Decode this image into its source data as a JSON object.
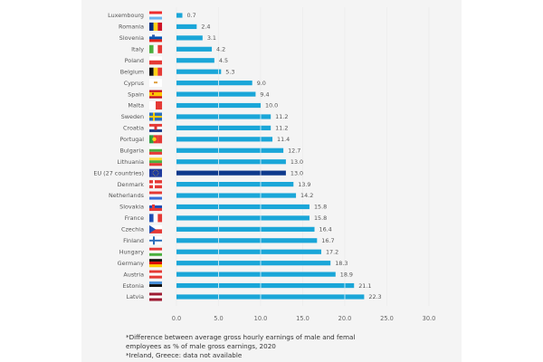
{
  "chart_data": {
    "type": "bar",
    "orientation": "horizontal",
    "title": "",
    "xlabel": "",
    "ylabel": "",
    "xlim": [
      0,
      30
    ],
    "xticks": [
      "0.0",
      "5.0",
      "10.0",
      "15.0",
      "20.0",
      "25.0",
      "30.0"
    ],
    "grid": true,
    "colors": {
      "bar": "#1aa6d8",
      "highlight": "#0e3a8c"
    },
    "categories": [
      "Luxembourg",
      "Romania",
      "Slovenia",
      "Italy",
      "Poland",
      "Belgium",
      "Cyprus",
      "Spain",
      "Malta",
      "Sweden",
      "Croatia",
      "Portugal",
      "Bulgaria",
      "Lithuania",
      "EU (27 countries)",
      "Denmark",
      "Netherlands",
      "Slovakia",
      "France",
      "Czechia",
      "Finland",
      "Hungary",
      "Germany",
      "Austria",
      "Estonia",
      "Latvia"
    ],
    "values": [
      0.7,
      2.4,
      3.1,
      4.2,
      4.5,
      5.3,
      9.0,
      9.4,
      10.0,
      11.2,
      11.2,
      11.4,
      12.7,
      13.0,
      13.0,
      13.9,
      14.2,
      15.8,
      15.8,
      16.4,
      16.7,
      17.2,
      18.3,
      18.9,
      21.1,
      22.3
    ],
    "value_labels": [
      "0.7",
      "2.4",
      "3.1",
      "4.2",
      "4.5",
      "5.3",
      "9.0",
      "9.4",
      "10.0",
      "11.2",
      "11.2",
      "11.4",
      "12.7",
      "13.0",
      "13.0",
      "13.9",
      "14.2",
      "15.8",
      "15.8",
      "16.4",
      "16.7",
      "17.2",
      "18.3",
      "18.9",
      "21.1",
      "22.3"
    ],
    "highlight": "EU (27 countries)",
    "flags": [
      "luxembourg-flag",
      "romania-flag",
      "slovenia-flag",
      "italy-flag",
      "poland-flag",
      "belgium-flag",
      "cyprus-flag",
      "spain-flag",
      "malta-flag",
      "sweden-flag",
      "croatia-flag",
      "portugal-flag",
      "bulgaria-flag",
      "lithuania-flag",
      "eu-flag",
      "denmark-flag",
      "netherlands-flag",
      "slovakia-flag",
      "france-flag",
      "czechia-flag",
      "finland-flag",
      "hungary-flag",
      "germany-flag",
      "austria-flag",
      "estonia-flag",
      "latvia-flag"
    ]
  },
  "footnotes": [
    "*Difference between average gross hourly earnings of male and femal",
    "employees as % of male gross earnings, 2020",
    "*Ireland, Greece: data not available"
  ]
}
